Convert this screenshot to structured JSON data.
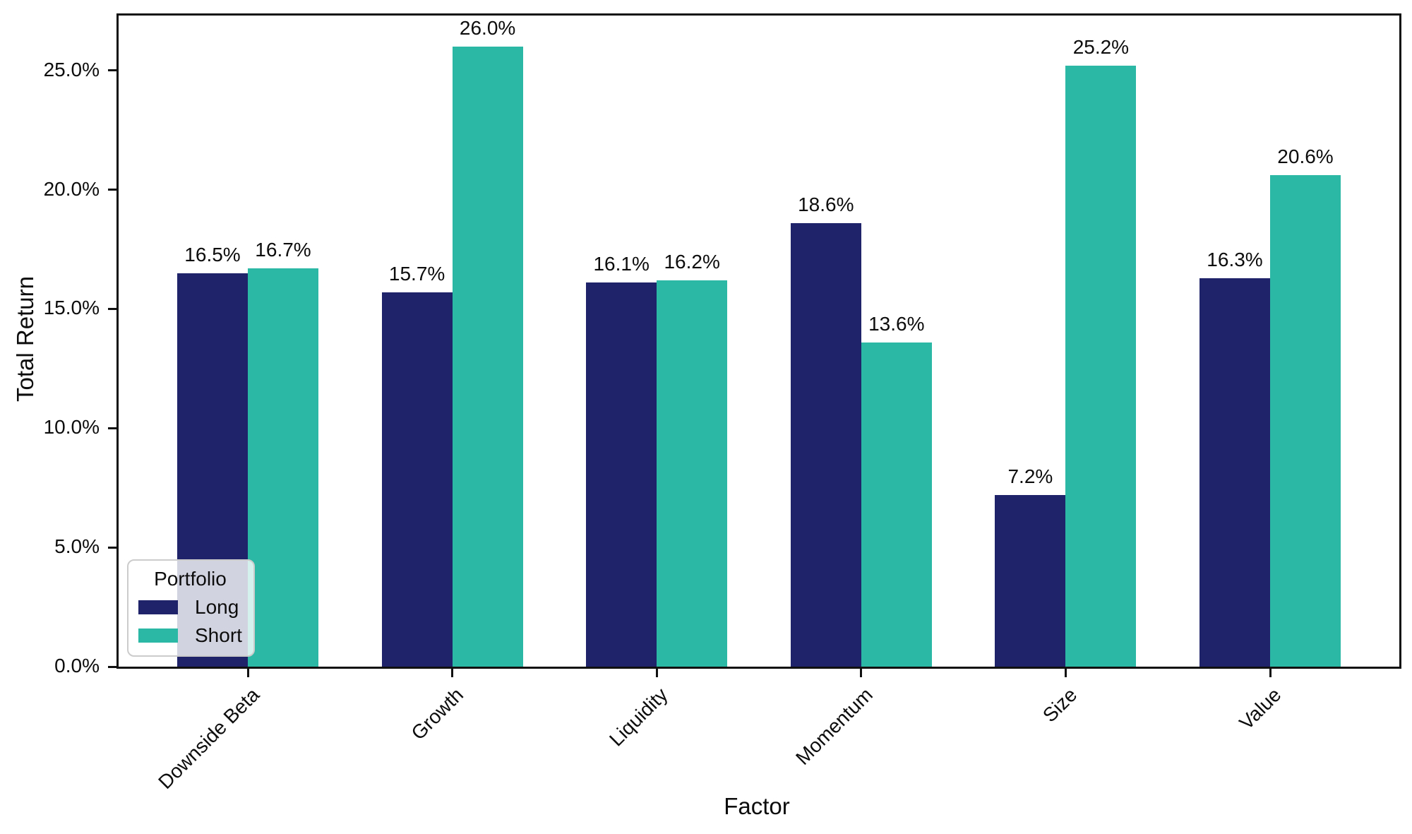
{
  "chart_data": {
    "type": "bar",
    "title": "",
    "xlabel": "Factor",
    "ylabel": "Total Return",
    "categories": [
      "Downside Beta",
      "Growth",
      "Liquidity",
      "Momentum",
      "Size",
      "Value"
    ],
    "series": [
      {
        "name": "Long",
        "color": "#1F2369",
        "values": [
          16.5,
          15.7,
          16.1,
          18.6,
          7.2,
          16.3
        ],
        "labels": [
          "16.5%",
          "15.7%",
          "16.1%",
          "18.6%",
          "7.2%",
          "16.3%"
        ]
      },
      {
        "name": "Short",
        "color": "#2BB8A5",
        "values": [
          16.7,
          26.0,
          16.2,
          13.6,
          25.2,
          20.6
        ],
        "labels": [
          "16.7%",
          "26.0%",
          "16.2%",
          "13.6%",
          "25.2%",
          "20.6%"
        ]
      }
    ],
    "ylim": [
      0,
      27.3
    ],
    "yticks": {
      "values": [
        0,
        5,
        10,
        15,
        20,
        25
      ],
      "labels": [
        "0.0%",
        "5.0%",
        "10.0%",
        "15.0%",
        "20.0%",
        "25.0%"
      ]
    },
    "xtick_rotation": 45,
    "grid": false,
    "legend": {
      "title": "Portfolio",
      "position": "lower left",
      "entries": [
        "Long",
        "Short"
      ]
    },
    "colors": {
      "long": "#1F2369",
      "short": "#2BB8A5",
      "axis": "#111111",
      "text": "#0d0d0d",
      "legend_border": "#cccccc"
    }
  }
}
